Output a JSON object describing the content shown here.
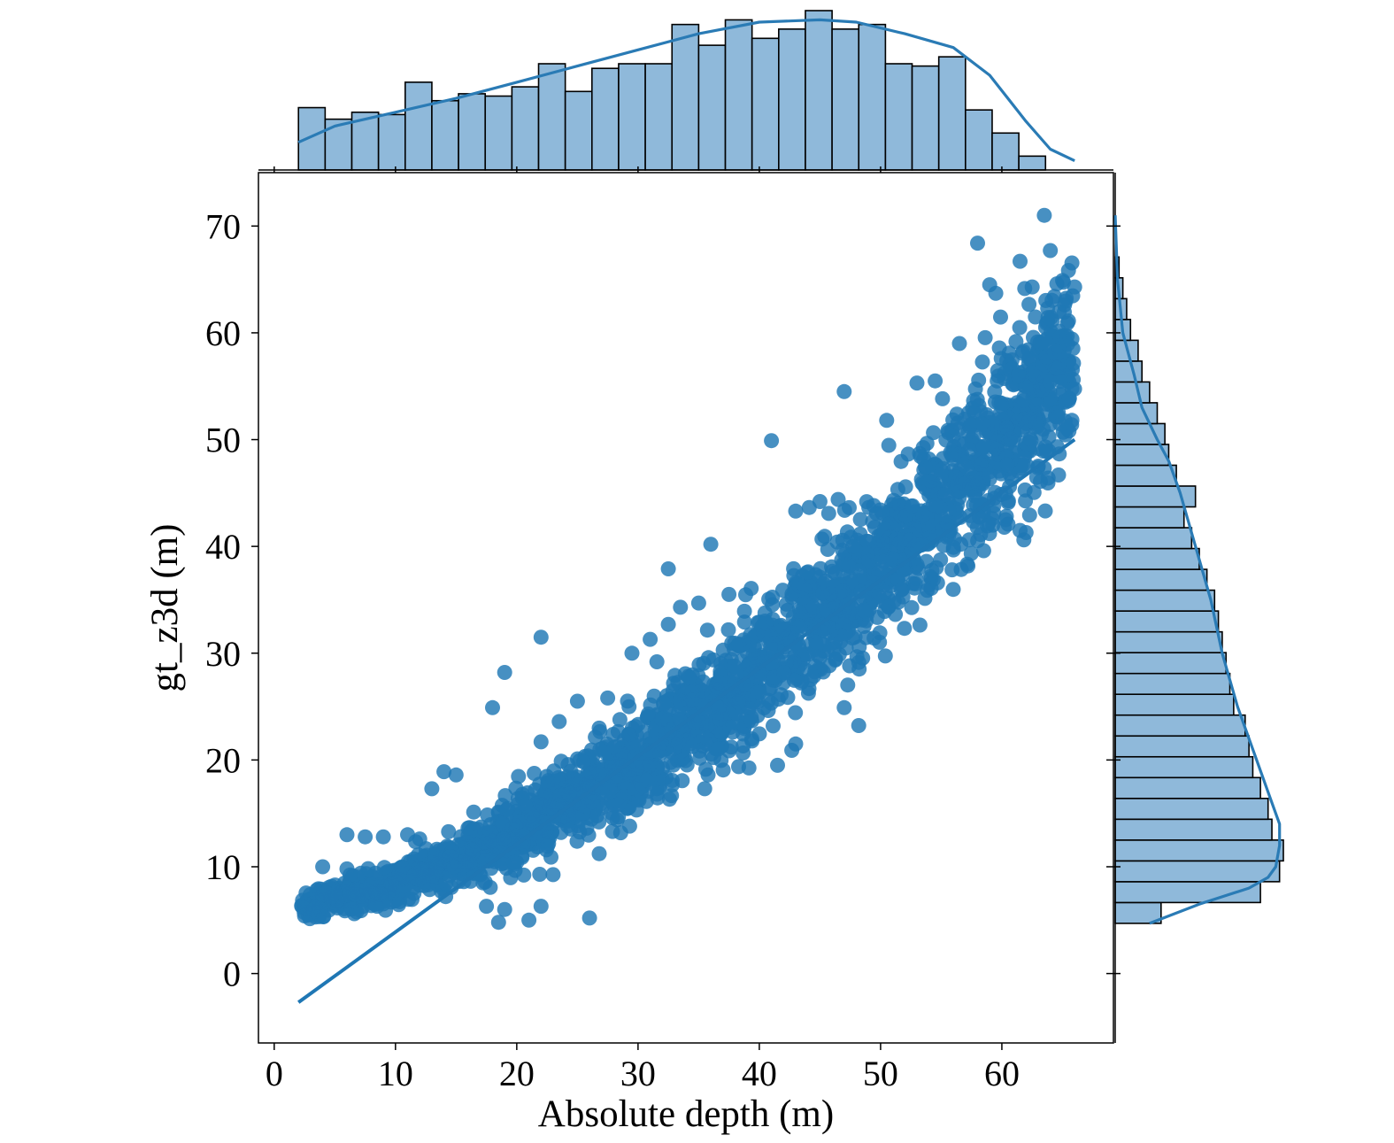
{
  "chart_data": {
    "type": "scatter",
    "kind": "joint-plot",
    "title": "",
    "xlabel": "Absolute depth (m)",
    "ylabel": "gt_z3d (m)",
    "xlim": [
      -1.3,
      69.2
    ],
    "ylim": [
      -6.5,
      75
    ],
    "xticks": [
      0,
      10,
      20,
      30,
      40,
      50,
      60
    ],
    "yticks": [
      0,
      10,
      20,
      30,
      40,
      50,
      60,
      70
    ],
    "grid": false,
    "legend": "none",
    "colors": {
      "points": "#1f77b4",
      "hist_fill": "#8fb9da",
      "hist_edge": "#000000",
      "kde_line": "#2a7bb5"
    },
    "main_trend": [
      [
        2,
        6.2
      ],
      [
        10,
        8.2
      ],
      [
        20,
        13.1
      ],
      [
        30,
        19.9
      ],
      [
        40,
        28.6
      ],
      [
        50,
        38.4
      ],
      [
        60,
        50.2
      ],
      [
        65,
        56.5
      ]
    ],
    "scatter_band_halfwidth": [
      [
        2,
        0.8
      ],
      [
        20,
        2.5
      ],
      [
        40,
        4.5
      ],
      [
        66,
        6.5
      ]
    ],
    "outliers": [
      {
        "x": 63.5,
        "y": 71.0
      },
      {
        "x": 58.0,
        "y": 68.4
      },
      {
        "x": 64.0,
        "y": 67.7
      },
      {
        "x": 61.5,
        "y": 66.7
      },
      {
        "x": 59.0,
        "y": 64.5
      },
      {
        "x": 59.5,
        "y": 63.7
      },
      {
        "x": 62.5,
        "y": 64.3
      },
      {
        "x": 65.0,
        "y": 64.9
      },
      {
        "x": 66.0,
        "y": 64.3
      },
      {
        "x": 47.0,
        "y": 54.5
      },
      {
        "x": 41.0,
        "y": 49.9
      },
      {
        "x": 36.0,
        "y": 40.2
      },
      {
        "x": 32.5,
        "y": 37.9
      },
      {
        "x": 22.0,
        "y": 31.5
      },
      {
        "x": 19.0,
        "y": 28.2
      },
      {
        "x": 18.0,
        "y": 24.9
      },
      {
        "x": 26.0,
        "y": 5.2
      },
      {
        "x": 21.0,
        "y": 5.0
      },
      {
        "x": 22.0,
        "y": 6.3
      },
      {
        "x": 18.5,
        "y": 4.8
      },
      {
        "x": 17.5,
        "y": 6.3
      },
      {
        "x": 19.0,
        "y": 6.0
      },
      {
        "x": 14.0,
        "y": 18.9
      },
      {
        "x": 15.0,
        "y": 18.6
      },
      {
        "x": 13.0,
        "y": 17.3
      },
      {
        "x": 6.0,
        "y": 13.0
      },
      {
        "x": 7.5,
        "y": 12.8
      },
      {
        "x": 9.0,
        "y": 12.8
      },
      {
        "x": 11.0,
        "y": 13.0
      },
      {
        "x": 12.0,
        "y": 12.6
      },
      {
        "x": 4.0,
        "y": 10.0
      },
      {
        "x": 6.0,
        "y": 9.8
      },
      {
        "x": 58.5,
        "y": 39.6
      },
      {
        "x": 61.5,
        "y": 41.5
      },
      {
        "x": 62.0,
        "y": 41.3
      },
      {
        "x": 53.0,
        "y": 55.3
      },
      {
        "x": 54.5,
        "y": 55.5
      },
      {
        "x": 56.5,
        "y": 59.0
      },
      {
        "x": 50.5,
        "y": 51.8
      },
      {
        "x": 43.0,
        "y": 43.3
      },
      {
        "x": 45.0,
        "y": 44.2
      },
      {
        "x": 46.5,
        "y": 44.4
      },
      {
        "x": 47.0,
        "y": 24.9
      },
      {
        "x": 37.5,
        "y": 35.5
      },
      {
        "x": 35.0,
        "y": 34.7
      },
      {
        "x": 33.5,
        "y": 34.3
      },
      {
        "x": 25.0,
        "y": 25.5
      },
      {
        "x": 27.5,
        "y": 25.8
      },
      {
        "x": 29.5,
        "y": 30.0
      },
      {
        "x": 31.0,
        "y": 31.3
      },
      {
        "x": 32.5,
        "y": 32.7
      },
      {
        "x": 23.5,
        "y": 23.6
      },
      {
        "x": 22.0,
        "y": 21.7
      },
      {
        "x": 35.5,
        "y": 17.3
      },
      {
        "x": 41.5,
        "y": 19.5
      },
      {
        "x": 43.0,
        "y": 21.5
      }
    ],
    "regression_line": {
      "x": [
        2,
        66
      ],
      "y": [
        -2.7,
        50.0
      ]
    },
    "marginal_x": {
      "bin_start": 2,
      "bin_width": 2.2,
      "counts": [
        27,
        22,
        25,
        24,
        38,
        30,
        33,
        32,
        36,
        46,
        34,
        44,
        46,
        46,
        63,
        54,
        65,
        57,
        61,
        69,
        61,
        63,
        46,
        45,
        49,
        26,
        16,
        6
      ],
      "kde": [
        [
          2,
          12
        ],
        [
          5,
          19
        ],
        [
          10,
          25
        ],
        [
          15,
          31
        ],
        [
          20,
          38
        ],
        [
          25,
          45
        ],
        [
          30,
          52
        ],
        [
          35,
          59
        ],
        [
          40,
          64
        ],
        [
          45,
          65
        ],
        [
          48,
          64
        ],
        [
          52,
          59
        ],
        [
          56,
          53
        ],
        [
          59,
          41
        ],
        [
          62,
          21
        ],
        [
          64,
          9
        ],
        [
          66,
          4
        ]
      ]
    },
    "marginal_y": {
      "bin_start": 4.7,
      "bin_width": 1.95,
      "counts": [
        12,
        38,
        43,
        44,
        41,
        40,
        38,
        36,
        35,
        34,
        31,
        30,
        29,
        28,
        27,
        26,
        24,
        22,
        20,
        18,
        21,
        16,
        14,
        13,
        11,
        9,
        7,
        6,
        4,
        3,
        2,
        1
      ],
      "kde": [
        [
          4.7,
          9
        ],
        [
          6.5,
          22
        ],
        [
          8,
          35
        ],
        [
          9,
          40
        ],
        [
          10,
          42
        ],
        [
          12,
          43
        ],
        [
          14,
          43
        ],
        [
          16,
          41
        ],
        [
          20,
          37
        ],
        [
          25,
          32
        ],
        [
          30,
          28
        ],
        [
          35,
          25
        ],
        [
          40,
          21
        ],
        [
          45,
          17
        ],
        [
          48,
          14
        ],
        [
          50,
          11
        ],
        [
          53,
          7
        ],
        [
          56,
          5
        ],
        [
          60,
          2
        ],
        [
          65,
          0.6
        ],
        [
          71,
          0
        ]
      ]
    }
  }
}
